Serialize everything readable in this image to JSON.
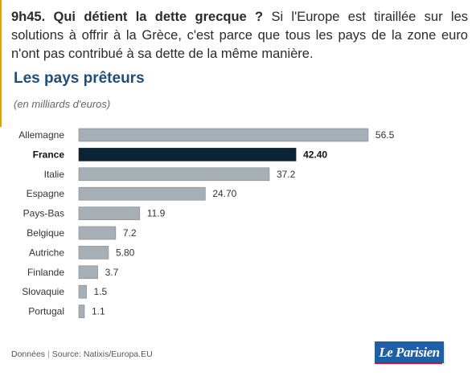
{
  "intro": {
    "lead": "9h45. Qui détient la dette grecque ?",
    "text": " Si l'Europe est tiraillée sur les solutions à offrir à la Grèce, c'est parce que tous les pays de la zone euro n'ont pas contribué à sa dette de la même manière."
  },
  "chart_data": {
    "type": "bar",
    "orientation": "horizontal",
    "title": "Les pays prêteurs",
    "subtitle": "(en milliards d'euros)",
    "categories": [
      "Allemagne",
      "France",
      "Italie",
      "Espagne",
      "Pays-Bas",
      "Belgique",
      "Autriche",
      "Finlande",
      "Slovaquie",
      "Portugal"
    ],
    "values": [
      56.5,
      42.4,
      37.2,
      24.7,
      11.9,
      7.2,
      5.8,
      3.7,
      1.5,
      1.1
    ],
    "value_labels": [
      "56.5",
      "42.40",
      "37.2",
      "24.70",
      "11.9",
      "7.2",
      "5.80",
      "3.7",
      "1.5",
      "1.1"
    ],
    "highlight_index": 1,
    "xlim": [
      0,
      60
    ],
    "grid": false,
    "colors": {
      "bar": "#a6afb6",
      "bar_border": "#7d868d",
      "highlight": "#0d2336"
    }
  },
  "footer": {
    "label": "Données",
    "separator": "|",
    "source": "Source: Natixis/Europa.EU"
  },
  "brand": {
    "name": "Le Parisien"
  }
}
